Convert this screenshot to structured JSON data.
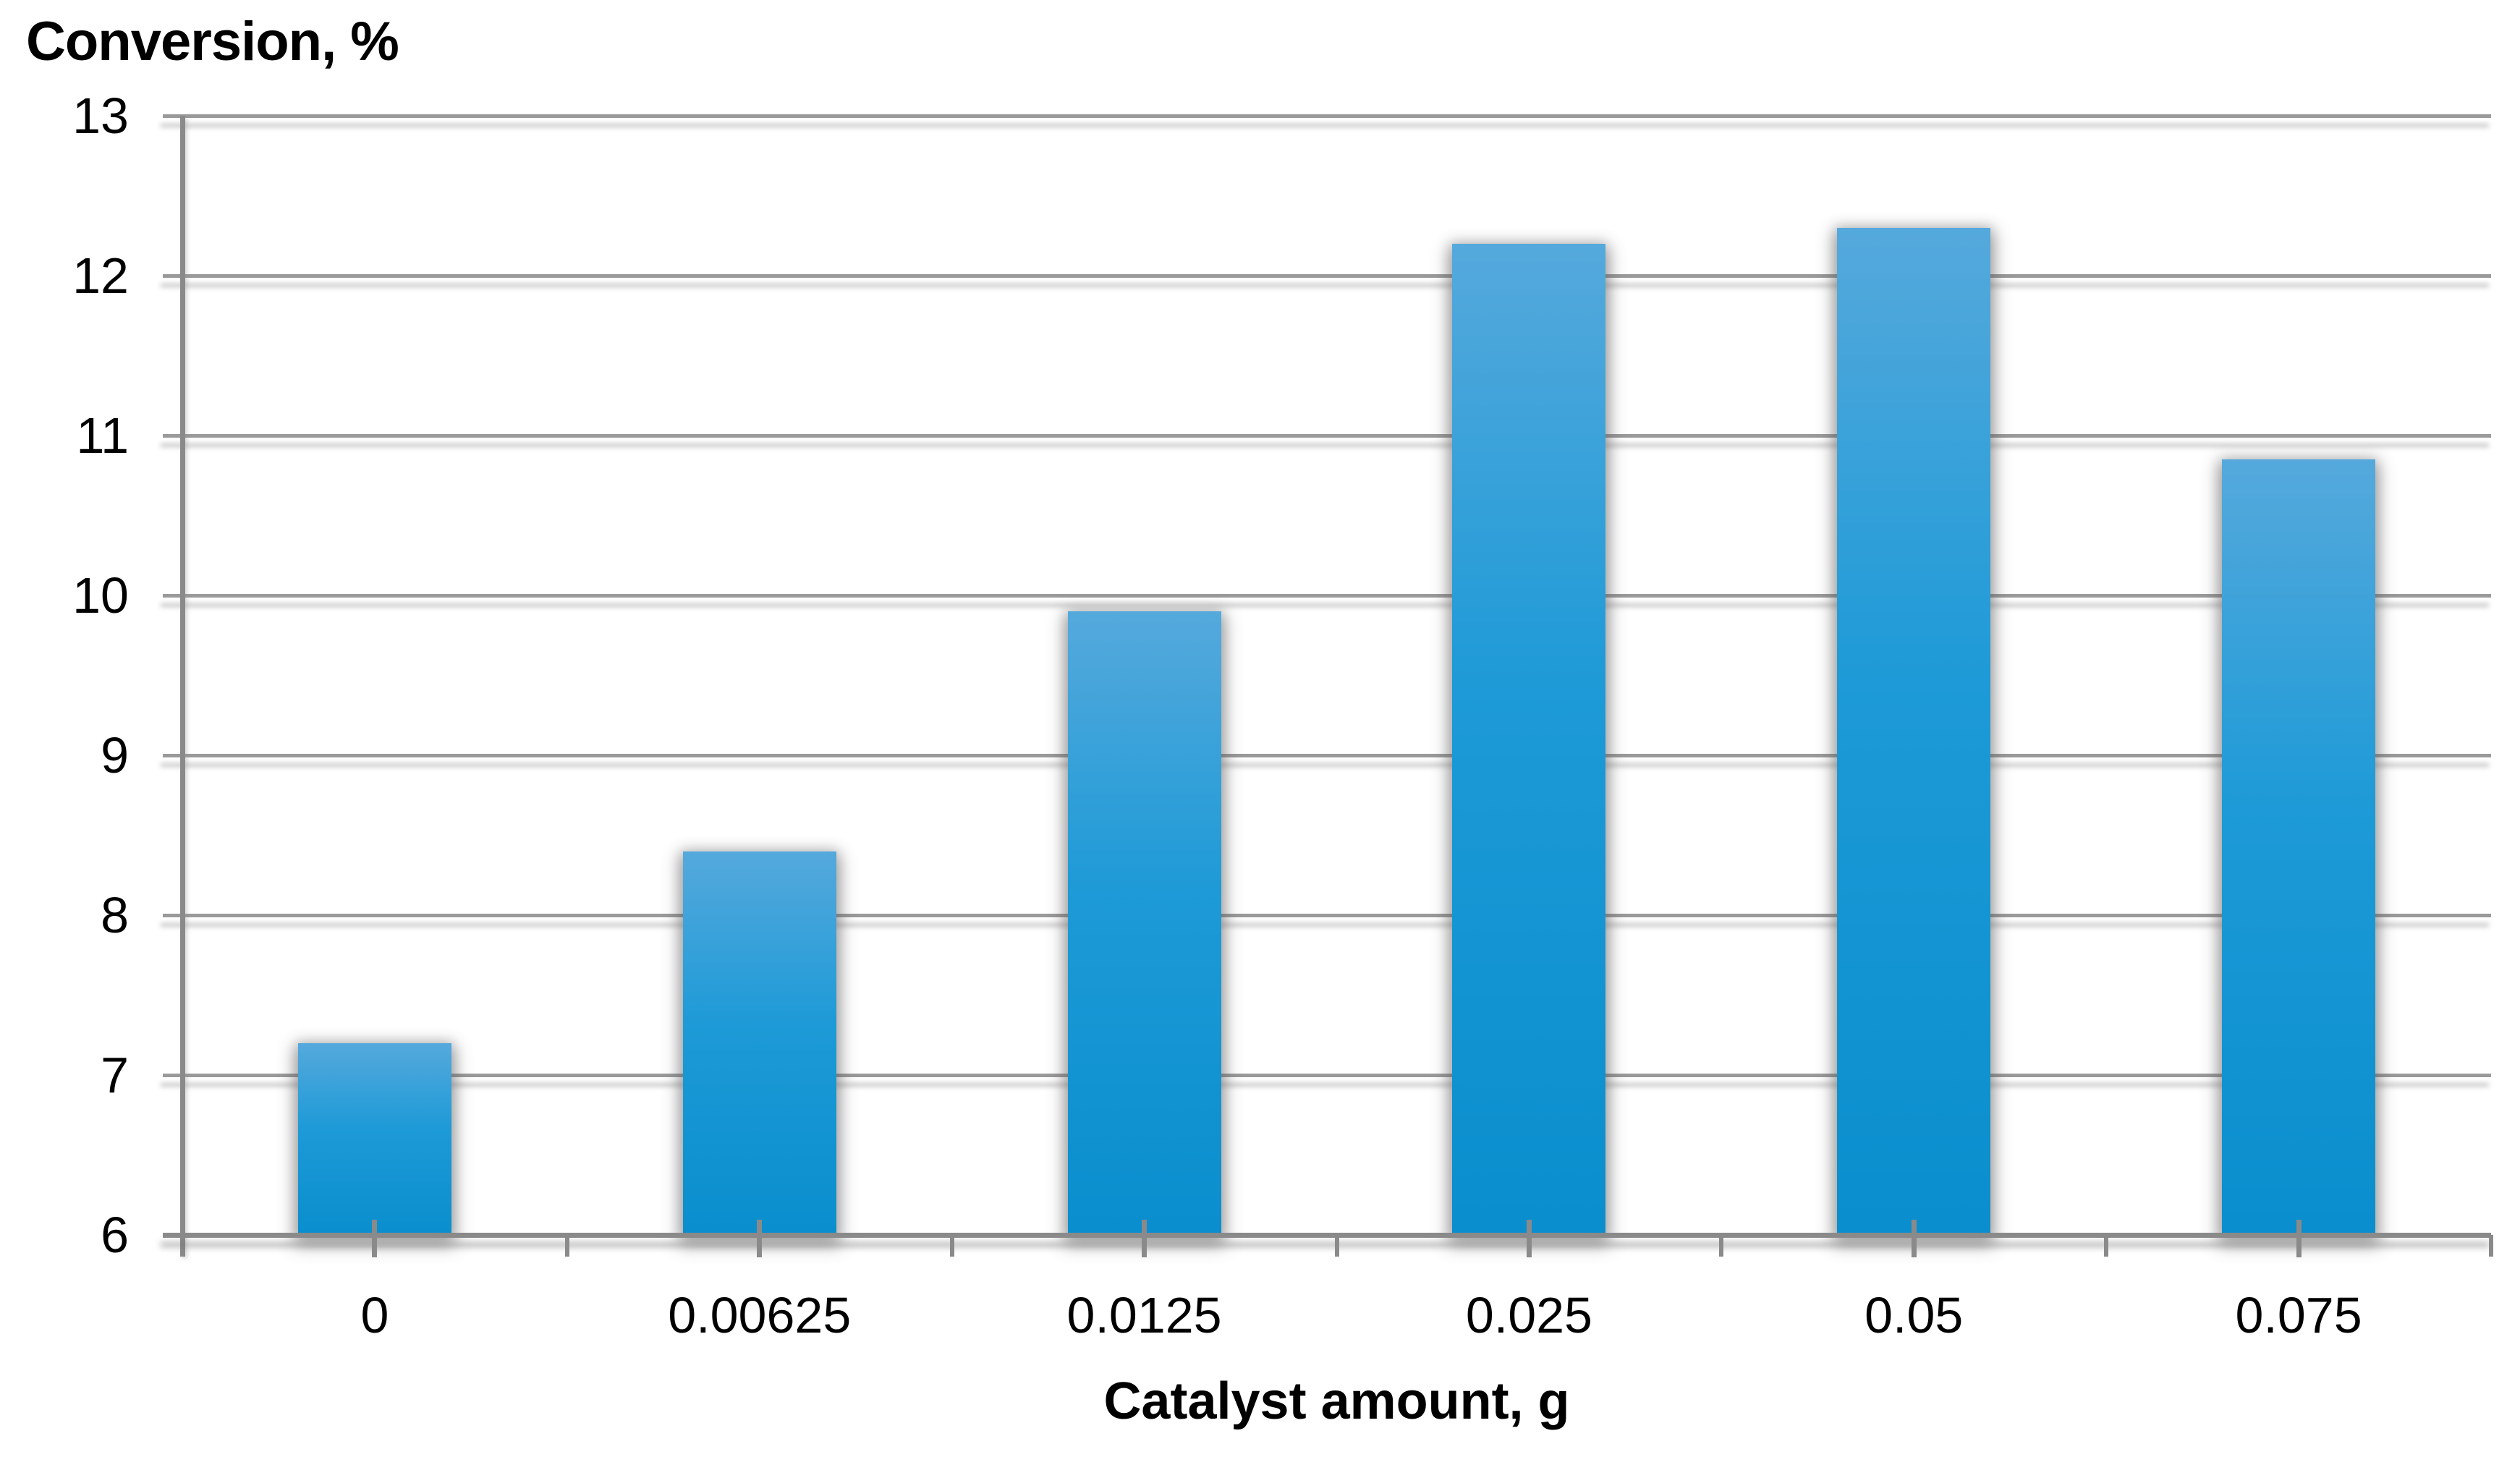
{
  "chart_data": {
    "type": "bar",
    "title": "Conversion, %",
    "xlabel": "Catalyst amount, g",
    "ylabel": "Conversion, %",
    "categories": [
      "0",
      "0.00625",
      "0.0125",
      "0.025",
      "0.05",
      "0.075"
    ],
    "values": [
      7.2,
      8.4,
      9.9,
      12.2,
      12.3,
      10.85
    ],
    "series_name": "Conversion",
    "ylim": [
      6,
      13
    ],
    "ytick_step": 1,
    "yticks": [
      13,
      12,
      11,
      10,
      9,
      8,
      7,
      6
    ],
    "grid": true,
    "legend": false,
    "colors": {
      "bar_top": "#55a9dc",
      "bar_mid": "#1d9ad7",
      "bar_bottom": "#0a8ecd",
      "gridline": "#9a9a9a",
      "axis": "#8a8a8a",
      "text": "#000000",
      "background": "#ffffff"
    }
  }
}
